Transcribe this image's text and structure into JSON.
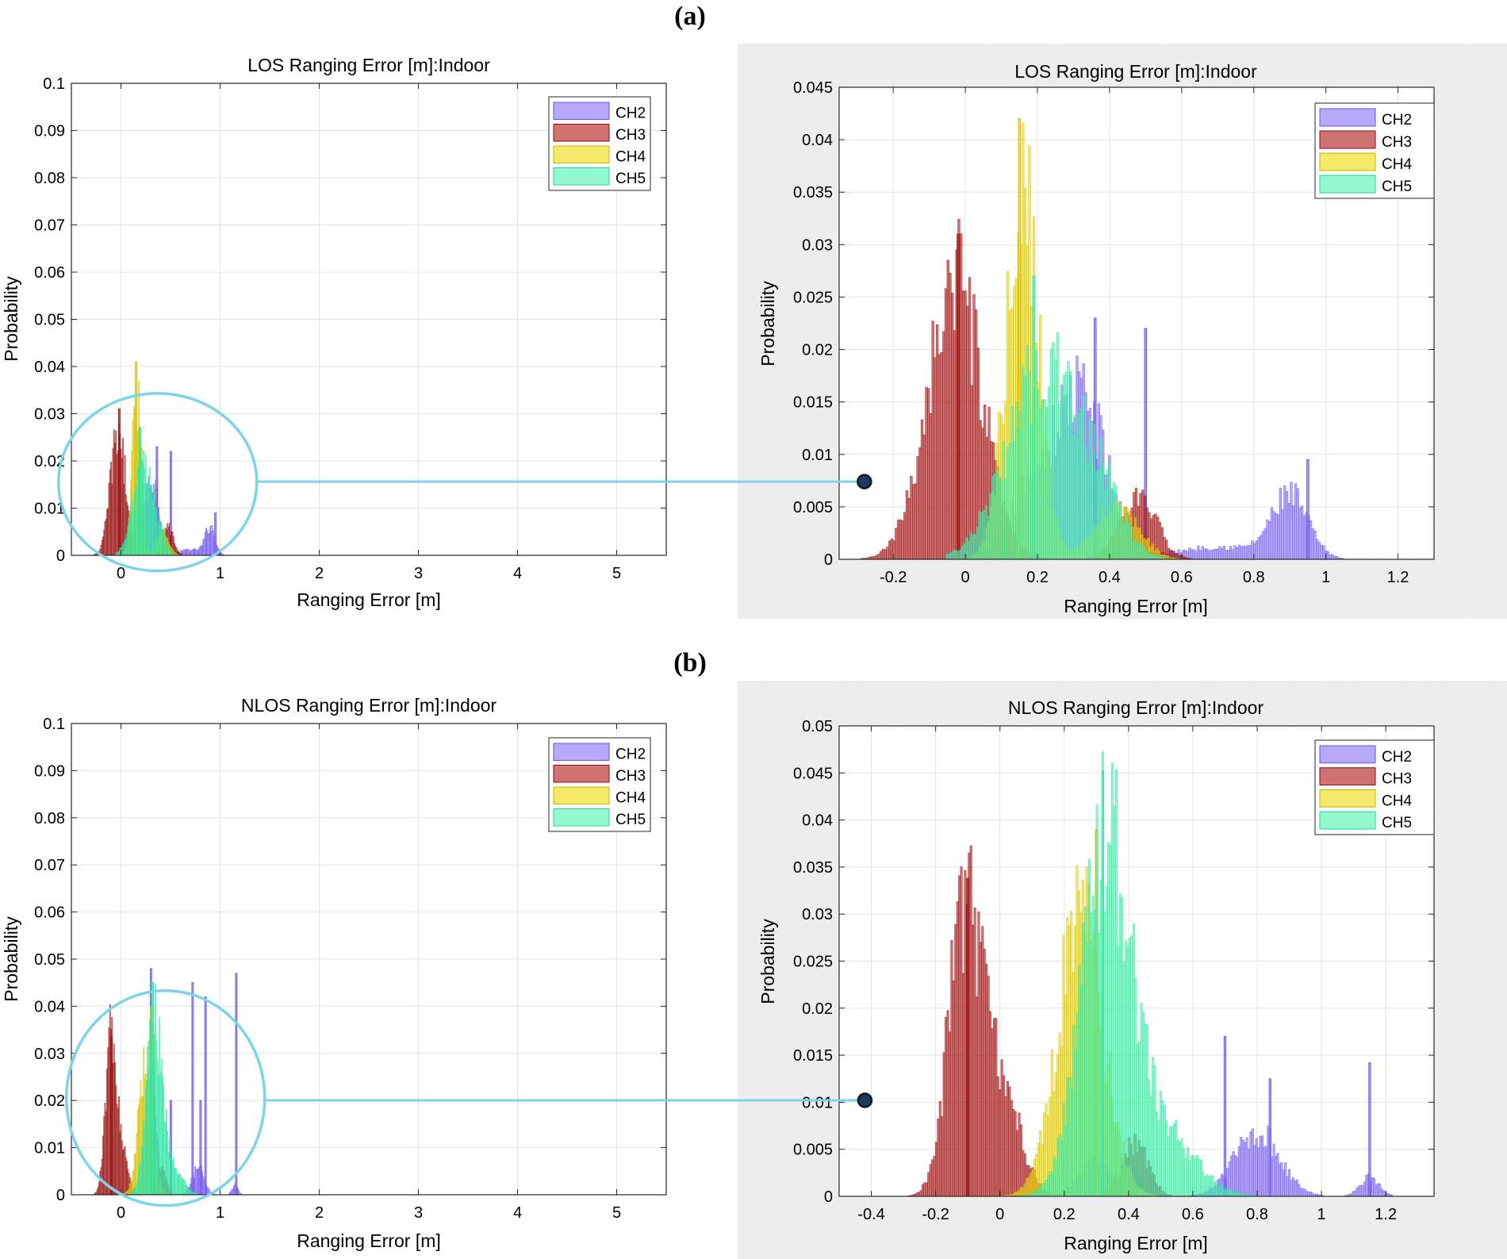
{
  "panels": [
    {
      "label": "(a)"
    },
    {
      "label": "(b)"
    }
  ],
  "colors": {
    "CH2": "#8a73f5",
    "CH3": "#b31c1c",
    "CH4": "#eedb10",
    "CH5": "#52f5b2",
    "CH2_edge": "#6a4ee6",
    "CH3_edge": "#8a0f0f",
    "CH4_edge": "#c9b400",
    "CH5_edge": "#1ed89a",
    "connector": "#7dd3ea"
  },
  "chart_data": [
    {
      "id": "a_full",
      "type": "bar",
      "title": "LOS Ranging Error [m]:Indoor",
      "xlabel": "Ranging Error [m]",
      "ylabel": "Probability",
      "xlim": [
        -0.5,
        5.5
      ],
      "ylim": [
        0,
        0.1
      ],
      "xticks": [
        0,
        1,
        2,
        3,
        4,
        5
      ],
      "xtick_labels": [
        "0",
        "1",
        "2",
        "3",
        "4",
        "5"
      ],
      "yticks": [
        0,
        0.01,
        0.02,
        0.03,
        0.04,
        0.05,
        0.06,
        0.07,
        0.08,
        0.09,
        0.1
      ],
      "ytick_labels": [
        "0",
        "0.01",
        "0.02",
        "0.03",
        "0.04",
        "0.05",
        "0.06",
        "0.07",
        "0.08",
        "0.09",
        "0.1"
      ],
      "grid": true,
      "legend": "top-right",
      "bin_width": 0.01,
      "series": [
        {
          "name": "CH2",
          "range": [
            -0.05,
            1.2
          ],
          "components": [
            {
              "mu": 0.32,
              "sd": 0.07,
              "a": 0.016
            },
            {
              "mu": 0.18,
              "sd": 0.06,
              "a": 0.006
            },
            {
              "mu": 0.9,
              "sd": 0.05,
              "a": 0.006
            },
            {
              "mu": 0.7,
              "sd": 0.12,
              "a": 0.0012
            }
          ],
          "spikes": [
            [
              0.5,
              0.022
            ],
            [
              0.36,
              0.023
            ],
            [
              0.95,
              0.009
            ]
          ]
        },
        {
          "name": "CH3",
          "range": [
            -0.35,
            0.7
          ],
          "components": [
            {
              "mu": -0.03,
              "sd": 0.075,
              "a": 0.027
            },
            {
              "mu": 0.48,
              "sd": 0.05,
              "a": 0.006
            }
          ],
          "spikes": [
            [
              -0.02,
              0.031
            ]
          ]
        },
        {
          "name": "CH4",
          "range": [
            -0.05,
            1.3
          ],
          "components": [
            {
              "mu": 0.16,
              "sd": 0.045,
              "a": 0.036
            },
            {
              "mu": 0.42,
              "sd": 0.06,
              "a": 0.005
            }
          ],
          "spikes": [
            [
              0.15,
              0.041
            ]
          ]
        },
        {
          "name": "CH5",
          "range": [
            -0.05,
            0.75
          ],
          "components": [
            {
              "mu": 0.22,
              "sd": 0.1,
              "a": 0.019
            },
            {
              "mu": 0.38,
              "sd": 0.06,
              "a": 0.004
            }
          ],
          "spikes": [
            [
              0.19,
              0.027
            ]
          ]
        }
      ],
      "zoom_circle": {
        "cx": 0.37,
        "cy": 0.0155,
        "rx_m": 1.0,
        "ry_p": 0.0188
      }
    },
    {
      "id": "a_zoom",
      "type": "bar",
      "title": "LOS Ranging Error [m]:Indoor",
      "xlabel": "Ranging Error [m]",
      "ylabel": "Probability",
      "xlim": [
        -0.35,
        1.3
      ],
      "ylim": [
        0,
        0.045
      ],
      "xticks": [
        -0.2,
        0,
        0.2,
        0.4,
        0.6,
        0.8,
        1,
        1.2
      ],
      "xtick_labels": [
        "-0.2",
        "0",
        "0.2",
        "0.4",
        "0.6",
        "0.8",
        "1",
        "1.2"
      ],
      "yticks": [
        0,
        0.005,
        0.01,
        0.015,
        0.02,
        0.025,
        0.03,
        0.035,
        0.04,
        0.045
      ],
      "ytick_labels": [
        "0",
        "0.005",
        "0.01",
        "0.015",
        "0.02",
        "0.025",
        "0.03",
        "0.035",
        "0.04",
        "0.045"
      ],
      "grid": true,
      "legend": "top-right",
      "bin_width": 0.006,
      "series": [
        {
          "name": "CH2",
          "range": [
            -0.05,
            1.2
          ],
          "components": [
            {
              "mu": 0.32,
              "sd": 0.07,
              "a": 0.016
            },
            {
              "mu": 0.18,
              "sd": 0.06,
              "a": 0.006
            },
            {
              "mu": 0.9,
              "sd": 0.05,
              "a": 0.006
            },
            {
              "mu": 0.7,
              "sd": 0.12,
              "a": 0.0012
            }
          ],
          "spikes": [
            [
              0.5,
              0.022
            ],
            [
              0.36,
              0.023
            ],
            [
              0.95,
              0.0095
            ]
          ]
        },
        {
          "name": "CH3",
          "range": [
            -0.3,
            0.7
          ],
          "components": [
            {
              "mu": -0.03,
              "sd": 0.075,
              "a": 0.027
            },
            {
              "mu": 0.48,
              "sd": 0.05,
              "a": 0.006
            }
          ],
          "spikes": [
            [
              -0.02,
              0.031
            ]
          ]
        },
        {
          "name": "CH4",
          "range": [
            -0.05,
            1.25
          ],
          "components": [
            {
              "mu": 0.16,
              "sd": 0.045,
              "a": 0.036
            },
            {
              "mu": 0.42,
              "sd": 0.06,
              "a": 0.005
            }
          ],
          "spikes": [
            [
              0.15,
              0.042
            ]
          ]
        },
        {
          "name": "CH5",
          "range": [
            -0.05,
            0.75
          ],
          "components": [
            {
              "mu": 0.22,
              "sd": 0.1,
              "a": 0.019
            },
            {
              "mu": 0.38,
              "sd": 0.06,
              "a": 0.004
            }
          ],
          "spikes": [
            [
              0.19,
              0.027
            ]
          ]
        }
      ],
      "marker": {
        "x": -0.28,
        "y": 0.0074
      }
    },
    {
      "id": "b_full",
      "type": "bar",
      "title": "NLOS Ranging Error [m]:Indoor",
      "xlabel": "Ranging Error [m]",
      "ylabel": "Probability",
      "xlim": [
        -0.5,
        5.5
      ],
      "ylim": [
        0,
        0.1
      ],
      "xticks": [
        0,
        1,
        2,
        3,
        4,
        5
      ],
      "xtick_labels": [
        "0",
        "1",
        "2",
        "3",
        "4",
        "5"
      ],
      "yticks": [
        0,
        0.01,
        0.02,
        0.03,
        0.04,
        0.05,
        0.06,
        0.07,
        0.08,
        0.09,
        0.1
      ],
      "ytick_labels": [
        "0",
        "0.01",
        "0.02",
        "0.03",
        "0.04",
        "0.05",
        "0.06",
        "0.07",
        "0.08",
        "0.09",
        "0.1"
      ],
      "grid": true,
      "legend": "top-right",
      "bin_width": 0.01,
      "series": [
        {
          "name": "CH2",
          "range": [
            0.0,
            1.25
          ],
          "components": [
            {
              "mu": 0.3,
              "sd": 0.05,
              "a": 0.03
            },
            {
              "mu": 0.78,
              "sd": 0.06,
              "a": 0.006
            },
            {
              "mu": 1.15,
              "sd": 0.03,
              "a": 0.002
            }
          ],
          "spikes": [
            [
              0.3,
              0.048
            ],
            [
              0.72,
              0.045
            ],
            [
              0.85,
              0.042
            ],
            [
              1.16,
              0.047
            ],
            [
              0.5,
              0.02
            ],
            [
              0.8,
              0.02
            ]
          ]
        },
        {
          "name": "CH3",
          "range": [
            -0.3,
            0.8
          ],
          "components": [
            {
              "mu": -0.11,
              "sd": 0.05,
              "a": 0.031
            },
            {
              "mu": 0.0,
              "sd": 0.06,
              "a": 0.012
            },
            {
              "mu": 0.42,
              "sd": 0.04,
              "a": 0.006
            }
          ],
          "spikes": [
            [
              -0.1,
              0.0335
            ]
          ]
        },
        {
          "name": "CH4",
          "range": [
            0.0,
            0.8
          ],
          "components": [
            {
              "mu": 0.25,
              "sd": 0.07,
              "a": 0.03
            }
          ],
          "spikes": [
            [
              0.3,
              0.04
            ]
          ]
        },
        {
          "name": "CH5",
          "range": [
            0.05,
            0.85
          ],
          "components": [
            {
              "mu": 0.33,
              "sd": 0.075,
              "a": 0.038
            },
            {
              "mu": 0.5,
              "sd": 0.1,
              "a": 0.007
            }
          ],
          "spikes": [
            [
              0.32,
              0.045
            ]
          ]
        }
      ],
      "zoom_circle": {
        "cx": 0.45,
        "cy": 0.0205,
        "rx_m": 1.0,
        "ry_p": 0.0228
      }
    },
    {
      "id": "b_zoom",
      "type": "bar",
      "title": "NLOS Ranging Error [m]:Indoor",
      "xlabel": "Ranging Error [m]",
      "ylabel": "Probability",
      "xlim": [
        -0.5,
        1.35
      ],
      "ylim": [
        0,
        0.05
      ],
      "xticks": [
        -0.4,
        -0.2,
        0,
        0.2,
        0.4,
        0.6,
        0.8,
        1,
        1.2
      ],
      "xtick_labels": [
        "-0.4",
        "-0.2",
        "0",
        "0.2",
        "0.4",
        "0.6",
        "0.8",
        "1",
        "1.2"
      ],
      "yticks": [
        0,
        0.005,
        0.01,
        0.015,
        0.02,
        0.025,
        0.03,
        0.035,
        0.04,
        0.045,
        0.05
      ],
      "ytick_labels": [
        "0",
        "0.005",
        "0.01",
        "0.015",
        "0.02",
        "0.025",
        "0.03",
        "0.035",
        "0.04",
        "0.045",
        "0.05"
      ],
      "grid": true,
      "legend": "top-right",
      "bin_width": 0.006,
      "series": [
        {
          "name": "CH2",
          "range": [
            0.0,
            1.25
          ],
          "components": [
            {
              "mu": 0.3,
              "sd": 0.05,
              "a": 0.004
            },
            {
              "mu": 0.8,
              "sd": 0.07,
              "a": 0.007
            },
            {
              "mu": 1.15,
              "sd": 0.03,
              "a": 0.002
            }
          ],
          "spikes": [
            [
              0.7,
              0.017
            ],
            [
              0.84,
              0.0125
            ],
            [
              1.15,
              0.0142
            ]
          ]
        },
        {
          "name": "CH3",
          "range": [
            -0.45,
            0.75
          ],
          "components": [
            {
              "mu": -0.11,
              "sd": 0.05,
              "a": 0.031
            },
            {
              "mu": 0.0,
              "sd": 0.06,
              "a": 0.012
            },
            {
              "mu": 0.42,
              "sd": 0.04,
              "a": 0.006
            }
          ],
          "spikes": [
            [
              -0.1,
              0.0338
            ]
          ]
        },
        {
          "name": "CH4",
          "range": [
            0.0,
            0.8
          ],
          "components": [
            {
              "mu": 0.25,
              "sd": 0.07,
              "a": 0.03
            }
          ],
          "spikes": [
            [
              0.3,
              0.039
            ]
          ]
        },
        {
          "name": "CH5",
          "range": [
            0.05,
            0.9
          ],
          "components": [
            {
              "mu": 0.33,
              "sd": 0.075,
              "a": 0.038
            },
            {
              "mu": 0.5,
              "sd": 0.1,
              "a": 0.007
            }
          ],
          "spikes": [
            [
              0.32,
              0.0452
            ]
          ]
        }
      ],
      "marker": {
        "x": -0.42,
        "y": 0.0102
      }
    }
  ]
}
